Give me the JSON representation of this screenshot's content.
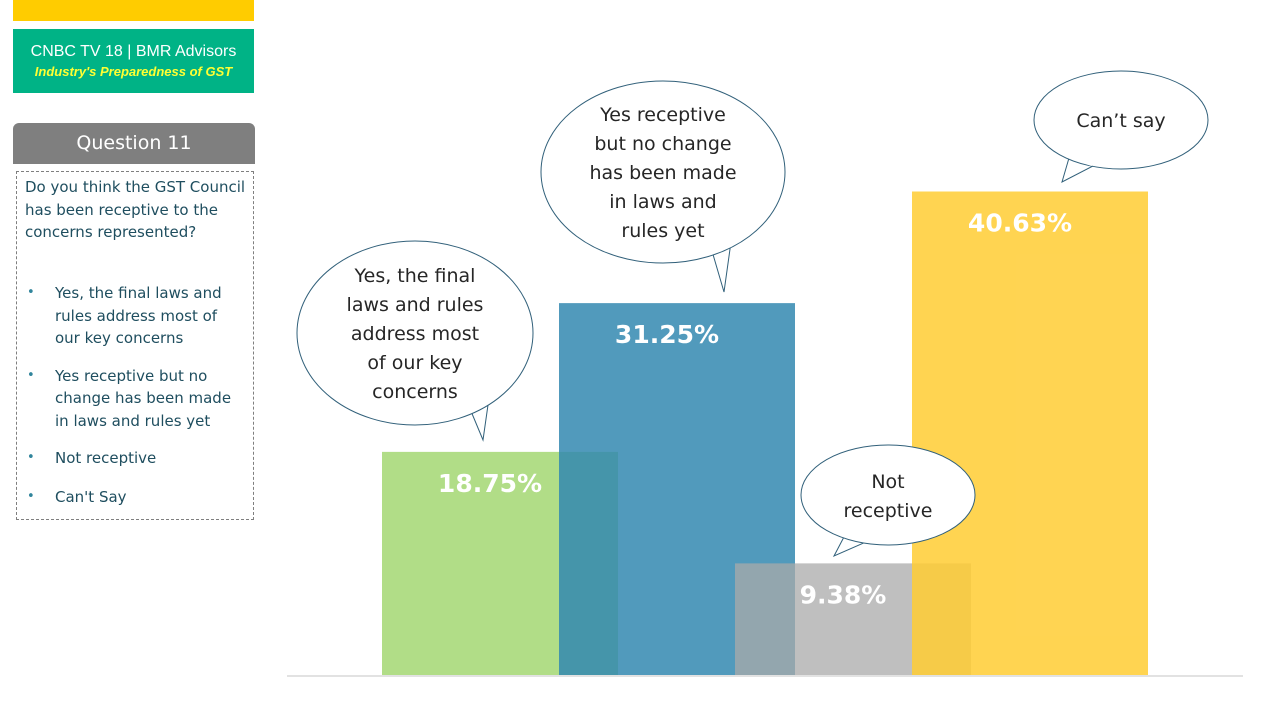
{
  "header": {
    "brand_line1": "CNBC TV 18 | BMR Advisors",
    "brand_line2": "Industry's Preparedness of GST"
  },
  "question": {
    "title": "Question 11",
    "text": "Do you think the GST Council has been receptive to the concerns represented?",
    "options": [
      "Yes, the final laws and rules address most of our key concerns",
      "Yes receptive but no change has been made in laws and rules yet",
      "Not receptive",
      "Can't Say"
    ]
  },
  "chart_data": {
    "type": "bar",
    "categories": [
      "Yes, the final laws and rules address most of our key concerns",
      "Yes receptive but no change has been made in laws and rules yet",
      "Not receptive",
      "Can’t say"
    ],
    "values": [
      18.75,
      31.25,
      9.38,
      40.63
    ],
    "data_labels": [
      "18.75%",
      "31.25%",
      "9.38%",
      "40.63%"
    ],
    "colors": [
      "#a9d97a",
      "#3288b0",
      "#aaaaaa",
      "#ffcc33"
    ],
    "bubble_lines": [
      [
        "Yes, the final",
        "laws and rules",
        "address most",
        "of our key",
        "concerns"
      ],
      [
        "Yes receptive",
        "but no change",
        "has been made",
        "in laws and",
        "rules yet"
      ],
      [
        "Not",
        "receptive"
      ],
      [
        "Can’t say"
      ]
    ],
    "ylim": [
      0,
      50
    ],
    "grid": false,
    "legend": "none"
  },
  "style": {
    "bubble_stroke": "#31607a",
    "text_color": "#1f4e5f"
  }
}
